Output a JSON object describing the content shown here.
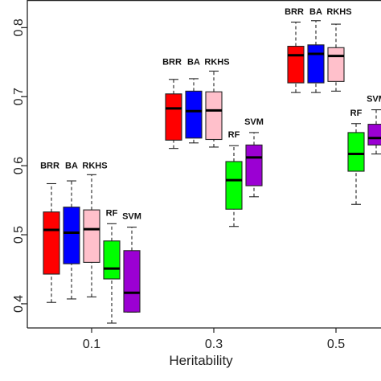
{
  "chart_data": {
    "type": "box",
    "xlabel": "Heritability",
    "ylabel": "",
    "ylim": [
      0.365,
      0.84
    ],
    "yticks": [
      "0.4",
      "0.5",
      "0.6",
      "0.7",
      "0.8"
    ],
    "categories": [
      "0.1",
      "0.3",
      "0.5"
    ],
    "grid": false,
    "groups": [
      {
        "category": "0.1",
        "boxes": [
          {
            "method": "BRR",
            "color": "#ff0000",
            "whisker_low": 0.402,
            "q1": 0.443,
            "median": 0.507,
            "q3": 0.533,
            "whisker_high": 0.574
          },
          {
            "method": "BA",
            "color": "#0000ff",
            "whisker_low": 0.407,
            "q1": 0.458,
            "median": 0.503,
            "q3": 0.54,
            "whisker_high": 0.578
          },
          {
            "method": "RKHS",
            "color": "#ffc0cb",
            "whisker_low": 0.41,
            "q1": 0.46,
            "median": 0.508,
            "q3": 0.536,
            "whisker_high": 0.587
          },
          {
            "method": "RF",
            "color": "#00ff00",
            "whisker_low": 0.372,
            "q1": 0.436,
            "median": 0.451,
            "q3": 0.491,
            "whisker_high": 0.516
          },
          {
            "method": "SVM",
            "color": "#9b00d3",
            "whisker_low": 0.388,
            "q1": 0.388,
            "median": 0.416,
            "q3": 0.477,
            "whisker_high": 0.511
          }
        ]
      },
      {
        "category": "0.3",
        "boxes": [
          {
            "method": "BRR",
            "color": "#ff0000",
            "whisker_low": 0.625,
            "q1": 0.637,
            "median": 0.683,
            "q3": 0.704,
            "whisker_high": 0.725
          },
          {
            "method": "BA",
            "color": "#0000ff",
            "whisker_low": 0.633,
            "q1": 0.64,
            "median": 0.679,
            "q3": 0.708,
            "whisker_high": 0.726
          },
          {
            "method": "RKHS",
            "color": "#ffc0cb",
            "whisker_low": 0.627,
            "q1": 0.638,
            "median": 0.68,
            "q3": 0.707,
            "whisker_high": 0.737
          },
          {
            "method": "RF",
            "color": "#00ff00",
            "whisker_low": 0.512,
            "q1": 0.537,
            "median": 0.579,
            "q3": 0.606,
            "whisker_high": 0.629
          },
          {
            "method": "SVM",
            "color": "#9b00d3",
            "whisker_low": 0.555,
            "q1": 0.571,
            "median": 0.612,
            "q3": 0.63,
            "whisker_high": 0.648
          }
        ]
      },
      {
        "category": "0.5",
        "boxes": [
          {
            "method": "BRR",
            "color": "#ff0000",
            "whisker_low": 0.706,
            "q1": 0.72,
            "median": 0.76,
            "q3": 0.773,
            "whisker_high": 0.808
          },
          {
            "method": "BA",
            "color": "#0000ff",
            "whisker_low": 0.706,
            "q1": 0.72,
            "median": 0.762,
            "q3": 0.775,
            "whisker_high": 0.81
          },
          {
            "method": "RKHS",
            "color": "#ffc0cb",
            "whisker_low": 0.708,
            "q1": 0.722,
            "median": 0.759,
            "q3": 0.771,
            "whisker_high": 0.805
          },
          {
            "method": "RF",
            "color": "#00ff00",
            "whisker_low": 0.544,
            "q1": 0.592,
            "median": 0.617,
            "q3": 0.648,
            "whisker_high": 0.661
          },
          {
            "method": "SVM",
            "color": "#9b00d3",
            "whisker_low": 0.617,
            "q1": 0.63,
            "median": 0.64,
            "q3": 0.66,
            "whisker_high": 0.681
          }
        ]
      }
    ],
    "group_labels": [
      {
        "category": "0.1",
        "top_row": [
          "BRR",
          "BA",
          "RKHS"
        ],
        "bottom_row": [
          "RF",
          "SVM"
        ]
      },
      {
        "category": "0.3",
        "top_row": [
          "BRR",
          "BA",
          "RKHS"
        ],
        "bottom_row": [
          "RF",
          "SVM"
        ]
      },
      {
        "category": "0.5",
        "top_row": [
          "BRR",
          "BA",
          "RKHS"
        ],
        "bottom_row": [
          "RF",
          "SVM"
        ]
      }
    ]
  }
}
